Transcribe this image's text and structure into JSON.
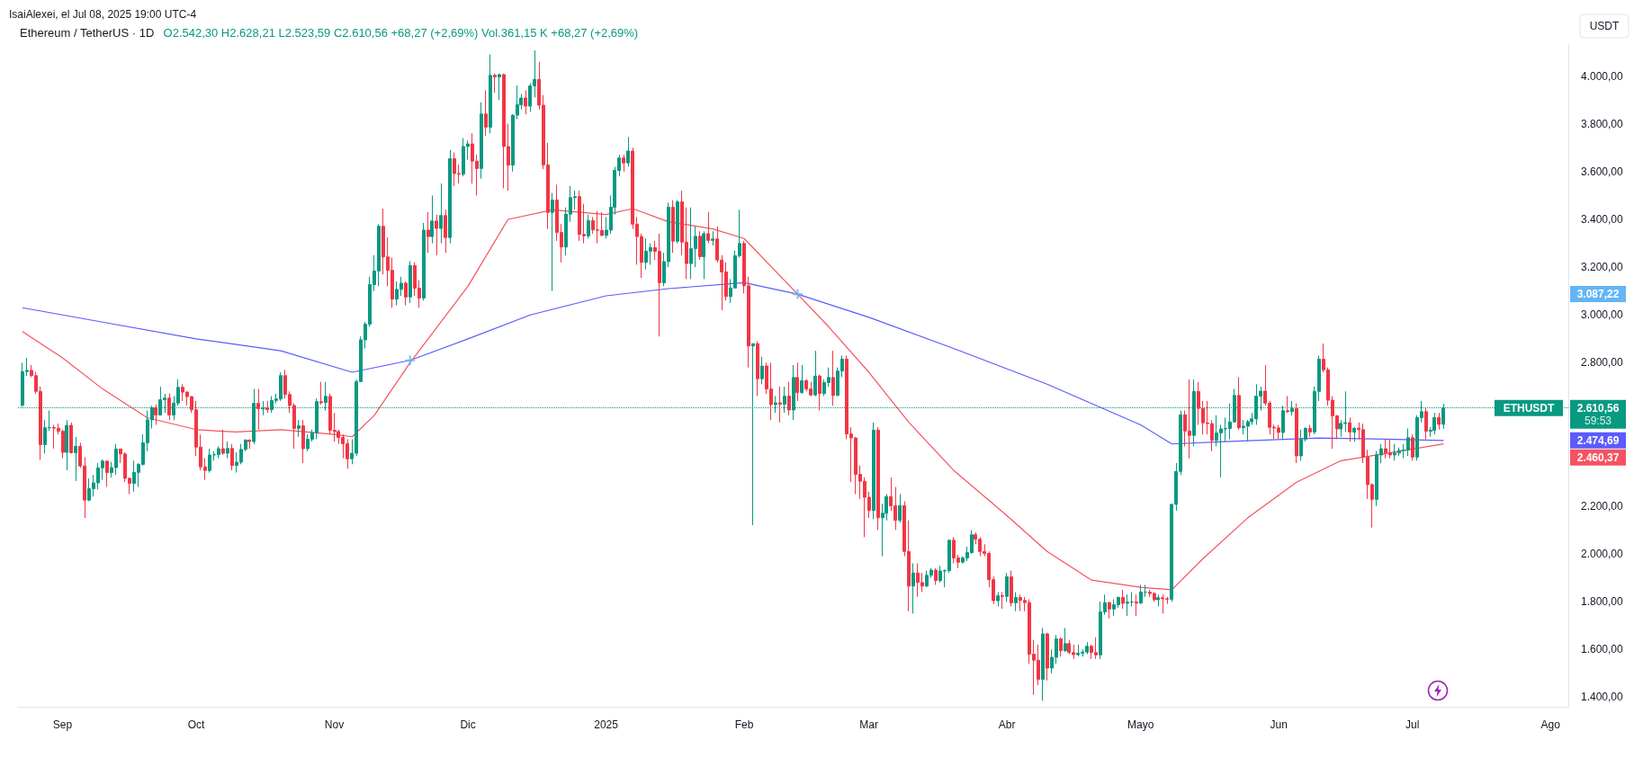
{
  "chart_data": {
    "type": "candlestick",
    "title": "Ethereum / TetherUS · 1D",
    "subtitle": "O2.542,30 H2.628,21 L2.523,59 C2.610,56 +68,27 (+2,69%) Vol.361,15 K +68,27 (+2,69%)",
    "x": [
      "2024-08-23",
      "2024-08-24",
      "2024-08-25",
      "2024-08-26",
      "2024-08-27",
      "2024-08-28",
      "2024-08-29",
      "2024-08-30",
      "2024-08-31",
      "2024-09-01",
      "2024-09-02",
      "2024-09-03",
      "2024-09-04",
      "2024-09-05",
      "2024-09-06",
      "2024-09-07",
      "2024-09-08",
      "2024-09-09",
      "2024-09-10",
      "2024-09-11",
      "2024-09-12",
      "2024-09-13",
      "2024-09-14",
      "2024-09-15",
      "2024-09-16",
      "2024-09-17",
      "2024-09-18",
      "2024-09-19",
      "2024-09-20",
      "2024-09-21",
      "2024-09-22",
      "2024-09-23",
      "2024-09-24",
      "2024-09-25",
      "2024-09-26",
      "2024-09-27",
      "2024-09-28",
      "2024-09-29",
      "2024-09-30",
      "2024-10-01",
      "2024-10-02",
      "2024-10-03",
      "2024-10-04",
      "2024-10-05",
      "2024-10-06",
      "2024-10-07",
      "2024-10-08",
      "2024-10-09",
      "2024-10-10",
      "2024-10-11",
      "2024-10-12",
      "2024-10-13",
      "2024-10-14",
      "2024-10-15",
      "2024-10-16",
      "2024-10-17",
      "2024-10-18",
      "2024-10-19",
      "2024-10-20",
      "2024-10-21",
      "2024-10-22",
      "2024-10-23",
      "2024-10-24",
      "2024-10-25",
      "2024-10-26",
      "2024-10-27",
      "2024-10-28",
      "2024-10-29",
      "2024-10-30",
      "2024-10-31",
      "2024-11-01",
      "2024-11-02",
      "2024-11-03",
      "2024-11-04",
      "2024-11-05",
      "2024-11-06",
      "2024-11-07",
      "2024-11-08",
      "2024-11-09",
      "2024-11-10",
      "2024-11-11",
      "2024-11-12",
      "2024-11-13",
      "2024-11-14",
      "2024-11-15",
      "2024-11-16",
      "2024-11-17",
      "2024-11-18",
      "2024-11-19",
      "2024-11-20",
      "2024-11-21",
      "2024-11-22",
      "2024-11-23",
      "2024-11-24",
      "2024-11-25",
      "2024-11-26",
      "2024-11-27",
      "2024-11-28",
      "2024-11-29",
      "2024-11-30",
      "2024-12-01",
      "2024-12-02",
      "2024-12-03",
      "2024-12-04",
      "2024-12-05",
      "2024-12-06",
      "2024-12-07",
      "2024-12-08",
      "2024-12-09",
      "2024-12-10",
      "2024-12-11",
      "2024-12-12",
      "2024-12-13",
      "2024-12-14",
      "2024-12-15",
      "2024-12-16",
      "2024-12-17",
      "2024-12-18",
      "2024-12-19",
      "2024-12-20",
      "2024-12-21",
      "2024-12-22",
      "2024-12-23",
      "2024-12-24",
      "2024-12-25",
      "2024-12-26",
      "2024-12-27",
      "2024-12-28",
      "2024-12-29",
      "2024-12-30",
      "2024-12-31",
      "2025-01-01",
      "2025-01-02",
      "2025-01-03",
      "2025-01-04",
      "2025-01-05",
      "2025-01-06",
      "2025-01-07",
      "2025-01-08",
      "2025-01-09",
      "2025-01-10",
      "2025-01-11",
      "2025-01-12",
      "2025-01-13",
      "2025-01-14",
      "2025-01-15",
      "2025-01-16",
      "2025-01-17",
      "2025-01-18",
      "2025-01-19",
      "2025-01-20",
      "2025-01-21",
      "2025-01-22",
      "2025-01-23",
      "2025-01-24",
      "2025-01-25",
      "2025-01-26",
      "2025-01-27",
      "2025-01-28",
      "2025-01-29",
      "2025-01-30",
      "2025-01-31",
      "2025-02-01",
      "2025-02-02",
      "2025-02-03",
      "2025-02-04",
      "2025-02-05",
      "2025-02-06",
      "2025-02-07",
      "2025-02-08",
      "2025-02-09",
      "2025-02-10",
      "2025-02-11",
      "2025-02-12",
      "2025-02-13",
      "2025-02-14",
      "2025-02-15",
      "2025-02-16",
      "2025-02-17",
      "2025-02-18",
      "2025-02-19",
      "2025-02-20",
      "2025-02-21",
      "2025-02-22",
      "2025-02-23",
      "2025-02-24",
      "2025-02-25",
      "2025-02-26",
      "2025-02-27",
      "2025-02-28",
      "2025-03-01",
      "2025-03-02",
      "2025-03-03",
      "2025-03-04",
      "2025-03-05",
      "2025-03-06",
      "2025-03-07",
      "2025-03-08",
      "2025-03-09",
      "2025-03-10",
      "2025-03-11",
      "2025-03-12",
      "2025-03-13",
      "2025-03-14",
      "2025-03-15",
      "2025-03-16",
      "2025-03-17",
      "2025-03-18",
      "2025-03-19",
      "2025-03-20",
      "2025-03-21",
      "2025-03-22",
      "2025-03-23",
      "2025-03-24",
      "2025-03-25",
      "2025-03-26",
      "2025-03-27",
      "2025-03-28",
      "2025-03-29",
      "2025-03-30",
      "2025-03-31",
      "2025-04-01",
      "2025-04-02",
      "2025-04-03",
      "2025-04-04",
      "2025-04-05",
      "2025-04-06",
      "2025-04-07",
      "2025-04-08",
      "2025-04-09",
      "2025-04-10",
      "2025-04-11",
      "2025-04-12",
      "2025-04-13",
      "2025-04-14",
      "2025-04-15",
      "2025-04-16",
      "2025-04-17",
      "2025-04-18",
      "2025-04-19",
      "2025-04-20",
      "2025-04-21",
      "2025-04-22",
      "2025-04-23",
      "2025-04-24",
      "2025-04-25",
      "2025-04-26",
      "2025-04-27",
      "2025-04-28",
      "2025-04-29",
      "2025-04-30",
      "2025-05-01",
      "2025-05-02",
      "2025-05-03",
      "2025-05-04",
      "2025-05-05",
      "2025-05-06",
      "2025-05-07",
      "2025-05-08",
      "2025-05-09",
      "2025-05-10",
      "2025-05-11",
      "2025-05-12",
      "2025-05-13",
      "2025-05-14",
      "2025-05-15",
      "2025-05-16",
      "2025-05-17",
      "2025-05-18",
      "2025-05-19",
      "2025-05-20",
      "2025-05-21",
      "2025-05-22",
      "2025-05-23",
      "2025-05-24",
      "2025-05-25",
      "2025-05-26",
      "2025-05-27",
      "2025-05-28",
      "2025-05-29",
      "2025-05-30",
      "2025-05-31",
      "2025-06-01",
      "2025-06-02",
      "2025-06-03",
      "2025-06-04",
      "2025-06-05",
      "2025-06-06",
      "2025-06-07",
      "2025-06-08",
      "2025-06-09",
      "2025-06-10",
      "2025-06-11",
      "2025-06-12",
      "2025-06-13",
      "2025-06-14",
      "2025-06-15",
      "2025-06-16",
      "2025-06-17",
      "2025-06-18",
      "2025-06-19",
      "2025-06-20",
      "2025-06-21",
      "2025-06-22",
      "2025-06-23",
      "2025-06-24",
      "2025-06-25",
      "2025-06-26",
      "2025-06-27",
      "2025-06-28",
      "2025-06-29",
      "2025-06-30",
      "2025-07-01",
      "2025-07-02",
      "2025-07-03",
      "2025-07-04",
      "2025-07-05",
      "2025-07-06",
      "2025-07-07",
      "2025-07-08"
    ],
    "ohlc": [
      [
        2622,
        2800,
        2615,
        2763
      ],
      [
        2763,
        2820,
        2745,
        2768
      ],
      [
        2768,
        2790,
        2740,
        2746
      ],
      [
        2746,
        2762,
        2670,
        2680
      ],
      [
        2680,
        2700,
        2394,
        2457
      ],
      [
        2457,
        2560,
        2420,
        2528
      ],
      [
        2528,
        2600,
        2515,
        2529
      ],
      [
        2529,
        2540,
        2440,
        2526
      ],
      [
        2526,
        2545,
        2500,
        2513
      ],
      [
        2513,
        2520,
        2400,
        2425
      ],
      [
        2425,
        2560,
        2350,
        2538
      ],
      [
        2538,
        2550,
        2420,
        2423
      ],
      [
        2423,
        2490,
        2305,
        2450
      ],
      [
        2450,
        2465,
        2360,
        2368
      ],
      [
        2368,
        2405,
        2150,
        2225
      ],
      [
        2225,
        2315,
        2220,
        2273
      ],
      [
        2273,
        2330,
        2240,
        2297
      ],
      [
        2297,
        2380,
        2270,
        2360
      ],
      [
        2360,
        2395,
        2310,
        2388
      ],
      [
        2388,
        2390,
        2280,
        2340
      ],
      [
        2340,
        2385,
        2320,
        2361
      ],
      [
        2361,
        2460,
        2330,
        2439
      ],
      [
        2439,
        2440,
        2380,
        2418
      ],
      [
        2418,
        2425,
        2300,
        2316
      ],
      [
        2316,
        2320,
        2250,
        2295
      ],
      [
        2295,
        2390,
        2260,
        2341
      ],
      [
        2341,
        2380,
        2280,
        2374
      ],
      [
        2374,
        2500,
        2370,
        2465
      ],
      [
        2465,
        2600,
        2430,
        2561
      ],
      [
        2561,
        2620,
        2525,
        2612
      ],
      [
        2612,
        2625,
        2540,
        2581
      ],
      [
        2581,
        2700,
        2580,
        2645
      ],
      [
        2645,
        2670,
        2590,
        2652
      ],
      [
        2652,
        2672,
        2560,
        2581
      ],
      [
        2581,
        2660,
        2560,
        2631
      ],
      [
        2631,
        2730,
        2620,
        2697
      ],
      [
        2697,
        2710,
        2640,
        2677
      ],
      [
        2677,
        2680,
        2620,
        2658
      ],
      [
        2658,
        2660,
        2590,
        2603
      ],
      [
        2603,
        2640,
        2410,
        2447
      ],
      [
        2447,
        2500,
        2350,
        2364
      ],
      [
        2364,
        2400,
        2310,
        2349
      ],
      [
        2349,
        2440,
        2340,
        2414
      ],
      [
        2414,
        2430,
        2390,
        2415
      ],
      [
        2415,
        2450,
        2400,
        2440
      ],
      [
        2440,
        2520,
        2415,
        2421
      ],
      [
        2421,
        2470,
        2400,
        2441
      ],
      [
        2441,
        2460,
        2350,
        2370
      ],
      [
        2370,
        2425,
        2340,
        2384
      ],
      [
        2384,
        2460,
        2375,
        2437
      ],
      [
        2437,
        2480,
        2430,
        2476
      ],
      [
        2476,
        2480,
        2440,
        2470
      ],
      [
        2470,
        2690,
        2460,
        2630
      ],
      [
        2630,
        2690,
        2520,
        2607
      ],
      [
        2607,
        2640,
        2580,
        2611
      ],
      [
        2611,
        2640,
        2590,
        2604
      ],
      [
        2604,
        2660,
        2590,
        2642
      ],
      [
        2642,
        2670,
        2630,
        2648
      ],
      [
        2648,
        2760,
        2640,
        2746
      ],
      [
        2746,
        2770,
        2650,
        2667
      ],
      [
        2667,
        2680,
        2590,
        2621
      ],
      [
        2621,
        2630,
        2440,
        2525
      ],
      [
        2525,
        2560,
        2490,
        2536
      ],
      [
        2536,
        2560,
        2380,
        2440
      ],
      [
        2440,
        2500,
        2430,
        2480
      ],
      [
        2480,
        2520,
        2470,
        2507
      ],
      [
        2507,
        2650,
        2480,
        2637
      ],
      [
        2637,
        2720,
        2625,
        2633
      ],
      [
        2633,
        2720,
        2600,
        2659
      ],
      [
        2659,
        2670,
        2500,
        2517
      ],
      [
        2517,
        2590,
        2470,
        2512
      ],
      [
        2512,
        2520,
        2460,
        2487
      ],
      [
        2487,
        2500,
        2400,
        2461
      ],
      [
        2461,
        2480,
        2356,
        2398
      ],
      [
        2398,
        2480,
        2375,
        2421
      ],
      [
        2421,
        2730,
        2410,
        2721
      ],
      [
        2721,
        2910,
        2720,
        2896
      ],
      [
        2896,
        2970,
        2860,
        2961
      ],
      [
        2961,
        3160,
        2950,
        3127
      ],
      [
        3127,
        3250,
        3100,
        3184
      ],
      [
        3184,
        3380,
        3120,
        3371
      ],
      [
        3371,
        3445,
        3170,
        3243
      ],
      [
        3243,
        3325,
        3120,
        3187
      ],
      [
        3187,
        3240,
        3030,
        3066
      ],
      [
        3066,
        3140,
        3040,
        3107
      ],
      [
        3107,
        3160,
        3080,
        3133
      ],
      [
        3133,
        3140,
        3040,
        3075
      ],
      [
        3075,
        3225,
        3050,
        3207
      ],
      [
        3207,
        3220,
        3080,
        3112
      ],
      [
        3112,
        3145,
        3030,
        3071
      ],
      [
        3071,
        3385,
        3060,
        3355
      ],
      [
        3355,
        3430,
        3260,
        3328
      ],
      [
        3328,
        3500,
        3300,
        3393
      ],
      [
        3393,
        3420,
        3250,
        3362
      ],
      [
        3362,
        3550,
        3300,
        3416
      ],
      [
        3416,
        3440,
        3260,
        3324
      ],
      [
        3324,
        3690,
        3300,
        3654
      ],
      [
        3654,
        3680,
        3540,
        3592
      ],
      [
        3592,
        3630,
        3550,
        3589
      ],
      [
        3589,
        3740,
        3580,
        3705
      ],
      [
        3705,
        3730,
        3650,
        3716
      ],
      [
        3716,
        3760,
        3550,
        3644
      ],
      [
        3644,
        3670,
        3500,
        3613
      ],
      [
        3613,
        3890,
        3570,
        3841
      ],
      [
        3841,
        3940,
        3750,
        3786
      ],
      [
        3786,
        4090,
        3760,
        4003
      ],
      [
        4003,
        4010,
        3930,
        3996
      ],
      [
        3996,
        4010,
        3900,
        4006
      ],
      [
        4006,
        4010,
        3530,
        3705
      ],
      [
        3705,
        3800,
        3520,
        3627
      ],
      [
        3627,
        3840,
        3600,
        3836
      ],
      [
        3836,
        3960,
        3820,
        3880
      ],
      [
        3880,
        3925,
        3860,
        3908
      ],
      [
        3908,
        3940,
        3840,
        3874
      ],
      [
        3874,
        3970,
        3850,
        3959
      ],
      [
        3959,
        4107,
        3910,
        3986
      ],
      [
        3986,
        4060,
        3860,
        3878
      ],
      [
        3878,
        3920,
        3610,
        3628
      ],
      [
        3628,
        3720,
        3360,
        3429
      ],
      [
        3429,
        3510,
        3100,
        3481
      ],
      [
        3481,
        3545,
        3310,
        3345
      ],
      [
        3345,
        3380,
        3220,
        3284
      ],
      [
        3284,
        3450,
        3250,
        3422
      ],
      [
        3422,
        3540,
        3390,
        3491
      ],
      [
        3491,
        3520,
        3440,
        3495
      ],
      [
        3495,
        3520,
        3310,
        3337
      ],
      [
        3337,
        3465,
        3300,
        3331
      ],
      [
        3331,
        3420,
        3320,
        3395
      ],
      [
        3395,
        3410,
        3340,
        3356
      ],
      [
        3356,
        3435,
        3300,
        3354
      ],
      [
        3354,
        3430,
        3330,
        3333
      ],
      [
        3333,
        3410,
        3320,
        3355
      ],
      [
        3355,
        3500,
        3340,
        3451
      ],
      [
        3451,
        3620,
        3420,
        3605
      ],
      [
        3605,
        3670,
        3580,
        3657
      ],
      [
        3657,
        3670,
        3600,
        3636
      ],
      [
        3636,
        3745,
        3620,
        3686
      ],
      [
        3686,
        3700,
        3360,
        3380
      ],
      [
        3380,
        3410,
        3210,
        3328
      ],
      [
        3328,
        3340,
        3155,
        3220
      ],
      [
        3220,
        3320,
        3190,
        3267
      ],
      [
        3267,
        3300,
        3210,
        3282
      ],
      [
        3282,
        3310,
        3230,
        3266
      ],
      [
        3266,
        3340,
        2910,
        3135
      ],
      [
        3135,
        3260,
        3120,
        3223
      ],
      [
        3223,
        3470,
        3200,
        3451
      ],
      [
        3451,
        3480,
        3260,
        3309
      ],
      [
        3309,
        3480,
        3300,
        3473
      ],
      [
        3473,
        3520,
        3250,
        3305
      ],
      [
        3305,
        3450,
        3150,
        3215
      ],
      [
        3215,
        3450,
        3150,
        3278
      ],
      [
        3278,
        3370,
        3200,
        3329
      ],
      [
        3329,
        3350,
        3230,
        3244
      ],
      [
        3244,
        3350,
        3150,
        3340
      ],
      [
        3340,
        3430,
        3300,
        3312
      ],
      [
        3312,
        3350,
        3290,
        3318
      ],
      [
        3318,
        3370,
        3220,
        3230
      ],
      [
        3230,
        3250,
        3020,
        3180
      ],
      [
        3180,
        3220,
        3060,
        3077
      ],
      [
        3077,
        3150,
        3050,
        3113
      ],
      [
        3113,
        3270,
        3110,
        3248
      ],
      [
        3248,
        3440,
        3240,
        3299
      ],
      [
        3299,
        3310,
        3090,
        3122
      ],
      [
        3122,
        3160,
        2780,
        2870
      ],
      [
        2870,
        2880,
        2120,
        2880
      ],
      [
        2880,
        2890,
        2660,
        2733
      ],
      [
        2733,
        2825,
        2710,
        2786
      ],
      [
        2786,
        2800,
        2670,
        2690
      ],
      [
        2690,
        2800,
        2560,
        2625
      ],
      [
        2625,
        2660,
        2590,
        2632
      ],
      [
        2632,
        2700,
        2550,
        2626
      ],
      [
        2626,
        2700,
        2590,
        2660
      ],
      [
        2660,
        2720,
        2580,
        2602
      ],
      [
        2602,
        2790,
        2560,
        2738
      ],
      [
        2738,
        2800,
        2640,
        2675
      ],
      [
        2675,
        2790,
        2670,
        2725
      ],
      [
        2725,
        2730,
        2680,
        2690
      ],
      [
        2690,
        2720,
        2660,
        2665
      ],
      [
        2665,
        2850,
        2660,
        2744
      ],
      [
        2744,
        2750,
        2600,
        2671
      ],
      [
        2671,
        2730,
        2660,
        2717
      ],
      [
        2717,
        2780,
        2700,
        2738
      ],
      [
        2738,
        2850,
        2620,
        2663
      ],
      [
        2663,
        2780,
        2660,
        2765
      ],
      [
        2765,
        2830,
        2740,
        2815
      ],
      [
        2815,
        2830,
        2480,
        2502
      ],
      [
        2502,
        2530,
        2300,
        2485
      ],
      [
        2485,
        2490,
        2250,
        2333
      ],
      [
        2333,
        2370,
        2230,
        2304
      ],
      [
        2304,
        2320,
        2070,
        2237
      ],
      [
        2237,
        2260,
        2150,
        2181
      ],
      [
        2181,
        2550,
        2145,
        2518
      ],
      [
        2518,
        2530,
        2100,
        2151
      ],
      [
        2151,
        2210,
        1990,
        2170
      ],
      [
        2170,
        2250,
        2140,
        2240
      ],
      [
        2240,
        2320,
        2180,
        2201
      ],
      [
        2201,
        2280,
        2100,
        2140
      ],
      [
        2140,
        2250,
        2130,
        2202
      ],
      [
        2202,
        2220,
        1990,
        2010
      ],
      [
        2010,
        2140,
        1760,
        1865
      ],
      [
        1865,
        1960,
        1750,
        1920
      ],
      [
        1920,
        1960,
        1820,
        1880
      ],
      [
        1880,
        1920,
        1840,
        1865
      ],
      [
        1865,
        1930,
        1860,
        1910
      ],
      [
        1910,
        1940,
        1900,
        1932
      ],
      [
        1932,
        1940,
        1870,
        1888
      ],
      [
        1888,
        1950,
        1880,
        1928
      ],
      [
        1928,
        1935,
        1860,
        1930
      ],
      [
        1930,
        2060,
        1920,
        2057
      ],
      [
        2057,
        2070,
        1960,
        1983
      ],
      [
        1983,
        1995,
        1940,
        1965
      ],
      [
        1965,
        1990,
        1960,
        1983
      ],
      [
        1983,
        2030,
        1970,
        2005
      ],
      [
        2005,
        2100,
        2000,
        2080
      ],
      [
        2080,
        2090,
        2040,
        2061
      ],
      [
        2061,
        2070,
        1990,
        2010
      ],
      [
        2010,
        2040,
        1990,
        2002
      ],
      [
        2002,
        2010,
        1860,
        1892
      ],
      [
        1892,
        1905,
        1790,
        1804
      ],
      [
        1804,
        1840,
        1780,
        1825
      ],
      [
        1825,
        1840,
        1770,
        1822
      ],
      [
        1822,
        1920,
        1800,
        1904
      ],
      [
        1904,
        1930,
        1780,
        1795
      ],
      [
        1795,
        1840,
        1760,
        1817
      ],
      [
        1817,
        1830,
        1760,
        1805
      ],
      [
        1805,
        1820,
        1760,
        1796
      ],
      [
        1796,
        1810,
        1540,
        1580
      ],
      [
        1580,
        1640,
        1410,
        1555
      ],
      [
        1555,
        1620,
        1450,
        1475
      ],
      [
        1475,
        1690,
        1385,
        1665
      ],
      [
        1665,
        1670,
        1470,
        1522
      ],
      [
        1522,
        1600,
        1500,
        1567
      ],
      [
        1567,
        1660,
        1540,
        1644
      ],
      [
        1644,
        1650,
        1570,
        1595
      ],
      [
        1595,
        1690,
        1590,
        1624
      ],
      [
        1624,
        1640,
        1580,
        1587
      ],
      [
        1587,
        1620,
        1560,
        1578
      ],
      [
        1578,
        1620,
        1570,
        1584
      ],
      [
        1584,
        1600,
        1570,
        1589
      ],
      [
        1589,
        1630,
        1580,
        1613
      ],
      [
        1613,
        1620,
        1560,
        1587
      ],
      [
        1587,
        1650,
        1560,
        1577
      ],
      [
        1577,
        1800,
        1560,
        1757
      ],
      [
        1757,
        1830,
        1745,
        1796
      ],
      [
        1796,
        1800,
        1730,
        1769
      ],
      [
        1769,
        1810,
        1740,
        1787
      ],
      [
        1787,
        1820,
        1775,
        1818
      ],
      [
        1818,
        1850,
        1770,
        1793
      ],
      [
        1793,
        1830,
        1740,
        1798
      ],
      [
        1798,
        1840,
        1780,
        1799
      ],
      [
        1799,
        1830,
        1740,
        1794
      ],
      [
        1794,
        1870,
        1790,
        1840
      ],
      [
        1840,
        1870,
        1820,
        1840
      ],
      [
        1840,
        1850,
        1820,
        1834
      ],
      [
        1834,
        1840,
        1800,
        1808
      ],
      [
        1808,
        1830,
        1780,
        1816
      ],
      [
        1816,
        1830,
        1750,
        1812
      ],
      [
        1812,
        1820,
        1790,
        1810
      ],
      [
        1810,
        2210,
        1800,
        2207
      ],
      [
        2207,
        2380,
        2180,
        2345
      ],
      [
        2345,
        2600,
        2330,
        2582
      ],
      [
        2582,
        2600,
        2450,
        2514
      ],
      [
        2514,
        2730,
        2400,
        2496
      ],
      [
        2496,
        2730,
        2450,
        2680
      ],
      [
        2680,
        2720,
        2540,
        2609
      ],
      [
        2609,
        2640,
        2500,
        2548
      ],
      [
        2548,
        2640,
        2500,
        2545
      ],
      [
        2545,
        2560,
        2430,
        2475
      ],
      [
        2475,
        2580,
        2450,
        2506
      ],
      [
        2506,
        2540,
        2320,
        2523
      ],
      [
        2523,
        2570,
        2470,
        2525
      ],
      [
        2525,
        2630,
        2480,
        2552
      ],
      [
        2552,
        2690,
        2550,
        2663
      ],
      [
        2663,
        2740,
        2520,
        2528
      ],
      [
        2528,
        2560,
        2500,
        2534
      ],
      [
        2534,
        2560,
        2470,
        2553
      ],
      [
        2553,
        2590,
        2540,
        2565
      ],
      [
        2565,
        2710,
        2540,
        2660
      ],
      [
        2660,
        2700,
        2600,
        2681
      ],
      [
        2681,
        2790,
        2620,
        2631
      ],
      [
        2631,
        2640,
        2500,
        2530
      ],
      [
        2530,
        2540,
        2480,
        2527
      ],
      [
        2527,
        2540,
        2480,
        2508
      ],
      [
        2508,
        2620,
        2480,
        2599
      ],
      [
        2599,
        2660,
        2590,
        2595
      ],
      [
        2595,
        2640,
        2580,
        2608
      ],
      [
        2608,
        2630,
        2380,
        2410
      ],
      [
        2410,
        2520,
        2390,
        2480
      ],
      [
        2480,
        2530,
        2470,
        2525
      ],
      [
        2525,
        2540,
        2490,
        2510
      ],
      [
        2510,
        2700,
        2500,
        2680
      ],
      [
        2680,
        2830,
        2640,
        2815
      ],
      [
        2815,
        2880,
        2760,
        2770
      ],
      [
        2770,
        2780,
        2620,
        2643
      ],
      [
        2643,
        2660,
        2440,
        2578
      ],
      [
        2578,
        2580,
        2480,
        2523
      ],
      [
        2523,
        2560,
        2490,
        2546
      ],
      [
        2546,
        2680,
        2510,
        2549
      ],
      [
        2549,
        2570,
        2470,
        2510
      ],
      [
        2510,
        2530,
        2470,
        2526
      ],
      [
        2526,
        2550,
        2480,
        2520
      ],
      [
        2520,
        2545,
        2380,
        2405
      ],
      [
        2405,
        2435,
        2230,
        2290
      ],
      [
        2290,
        2295,
        2110,
        2228
      ],
      [
        2228,
        2430,
        2200,
        2414
      ],
      [
        2414,
        2460,
        2380,
        2440
      ],
      [
        2440,
        2480,
        2400,
        2422
      ],
      [
        2422,
        2480,
        2400,
        2414
      ],
      [
        2414,
        2460,
        2390,
        2422
      ],
      [
        2422,
        2445,
        2410,
        2433
      ],
      [
        2433,
        2460,
        2400,
        2435
      ],
      [
        2435,
        2525,
        2410,
        2486
      ],
      [
        2486,
        2500,
        2390,
        2405
      ],
      [
        2405,
        2580,
        2390,
        2570
      ],
      [
        2570,
        2640,
        2550,
        2595
      ],
      [
        2595,
        2610,
        2480,
        2513
      ],
      [
        2513,
        2530,
        2490,
        2517
      ],
      [
        2517,
        2590,
        2500,
        2571
      ],
      [
        2571,
        2590,
        2520,
        2542
      ],
      [
        2542.3,
        2628.21,
        2523.59,
        2610.56
      ]
    ],
    "series": [
      {
        "type": "scatter",
        "marker": "cross",
        "color": "#64b5f6",
        "x": [
          "2024-11-18",
          "2025-02-13"
        ],
        "values": [
          2810,
          3087.22
        ]
      },
      {
        "type": "line",
        "color": "#5b5bff",
        "x": [
          "2024-08-23",
          "2024-09-10",
          "2024-10-01",
          "2024-10-20",
          "2024-11-05",
          "2024-11-18",
          "2024-12-01",
          "2024-12-15",
          "2025-01-01",
          "2025-01-15",
          "2025-02-01",
          "2025-02-13",
          "2025-03-01",
          "2025-03-20",
          "2025-04-10",
          "2025-05-01",
          "2025-05-08",
          "2025-05-20",
          "2025-06-10",
          "2025-06-25",
          "2025-07-08"
        ],
        "values": [
          3030,
          2970,
          2900,
          2850,
          2760,
          2810,
          2900,
          3000,
          3080,
          3110,
          3135,
          3087,
          2990,
          2860,
          2710,
          2540,
          2460,
          2470,
          2485,
          2480,
          2474.69
        ]
      },
      {
        "type": "line",
        "color": "#f7525f",
        "x": [
          "2024-08-23",
          "2024-09-01",
          "2024-09-10",
          "2024-09-20",
          "2024-10-01",
          "2024-10-10",
          "2024-10-20",
          "2024-11-01",
          "2024-11-05",
          "2024-11-10",
          "2024-11-18",
          "2024-12-01",
          "2024-12-10",
          "2024-12-20",
          "2025-01-01",
          "2025-01-07",
          "2025-01-15",
          "2025-01-25",
          "2025-02-01",
          "2025-02-13",
          "2025-02-20",
          "2025-03-01",
          "2025-03-10",
          "2025-03-20",
          "2025-04-01",
          "2025-04-10",
          "2025-04-20",
          "2025-05-01",
          "2025-05-08",
          "2025-05-15",
          "2025-05-25",
          "2025-06-05",
          "2025-06-15",
          "2025-06-25",
          "2025-07-08"
        ],
        "values": [
          2930,
          2820,
          2690,
          2570,
          2520,
          2510,
          2520,
          2500,
          2490,
          2580,
          2800,
          3120,
          3400,
          3440,
          3420,
          3445,
          3390,
          3360,
          3320,
          3087,
          2950,
          2760,
          2550,
          2350,
          2160,
          2010,
          1890,
          1860,
          1850,
          1980,
          2150,
          2300,
          2390,
          2420,
          2460.37
        ]
      }
    ],
    "xlim": [
      "2024-08-22",
      "2025-08-05"
    ],
    "xticks": [
      {
        "value": "2024-09-01",
        "label": "Sep"
      },
      {
        "value": "2024-10-01",
        "label": "Oct"
      },
      {
        "value": "2024-11-01",
        "label": "Nov"
      },
      {
        "value": "2024-12-01",
        "label": "Dic"
      },
      {
        "value": "2025-01-01",
        "label": "2025"
      },
      {
        "value": "2025-02-01",
        "label": "Feb"
      },
      {
        "value": "2025-03-01",
        "label": "Mar"
      },
      {
        "value": "2025-04-01",
        "label": "Abr"
      },
      {
        "value": "2025-05-01",
        "label": "Mayo"
      },
      {
        "value": "2025-06-01",
        "label": "Jun"
      },
      {
        "value": "2025-07-01",
        "label": "Jul"
      },
      {
        "value": "2025-08-01",
        "label": "Ago"
      }
    ],
    "ylim": [
      1360,
      4130
    ],
    "yticks": [
      {
        "value": 1400,
        "label": "1.400,00"
      },
      {
        "value": 1600,
        "label": "1.600,00"
      },
      {
        "value": 1800,
        "label": "1.800,00"
      },
      {
        "value": 2000,
        "label": "2.000,00"
      },
      {
        "value": 2200,
        "label": "2.200,00"
      },
      {
        "value": 2800,
        "label": "2.800,00"
      },
      {
        "value": 3000,
        "label": "3.000,00"
      },
      {
        "value": 3200,
        "label": "3.200,00"
      },
      {
        "value": 3400,
        "label": "3.400,00"
      },
      {
        "value": 3600,
        "label": "3.600,00"
      },
      {
        "value": 3800,
        "label": "3.800,00"
      },
      {
        "value": 4000,
        "label": "4.000,00"
      }
    ],
    "ref_lines": [
      {
        "axis": "y",
        "value": 2610.56,
        "label": "ETHUSDT",
        "color": "#089981",
        "line_style": "dotted"
      }
    ],
    "annotations": [
      "IsaiAlexei, el Jul 08, 2025 19:00 UTC-4",
      "USDT",
      "2.610,56",
      "59:53",
      "3.087,22",
      "2.474,69",
      "2.460,37"
    ],
    "grid": false
  }
}
